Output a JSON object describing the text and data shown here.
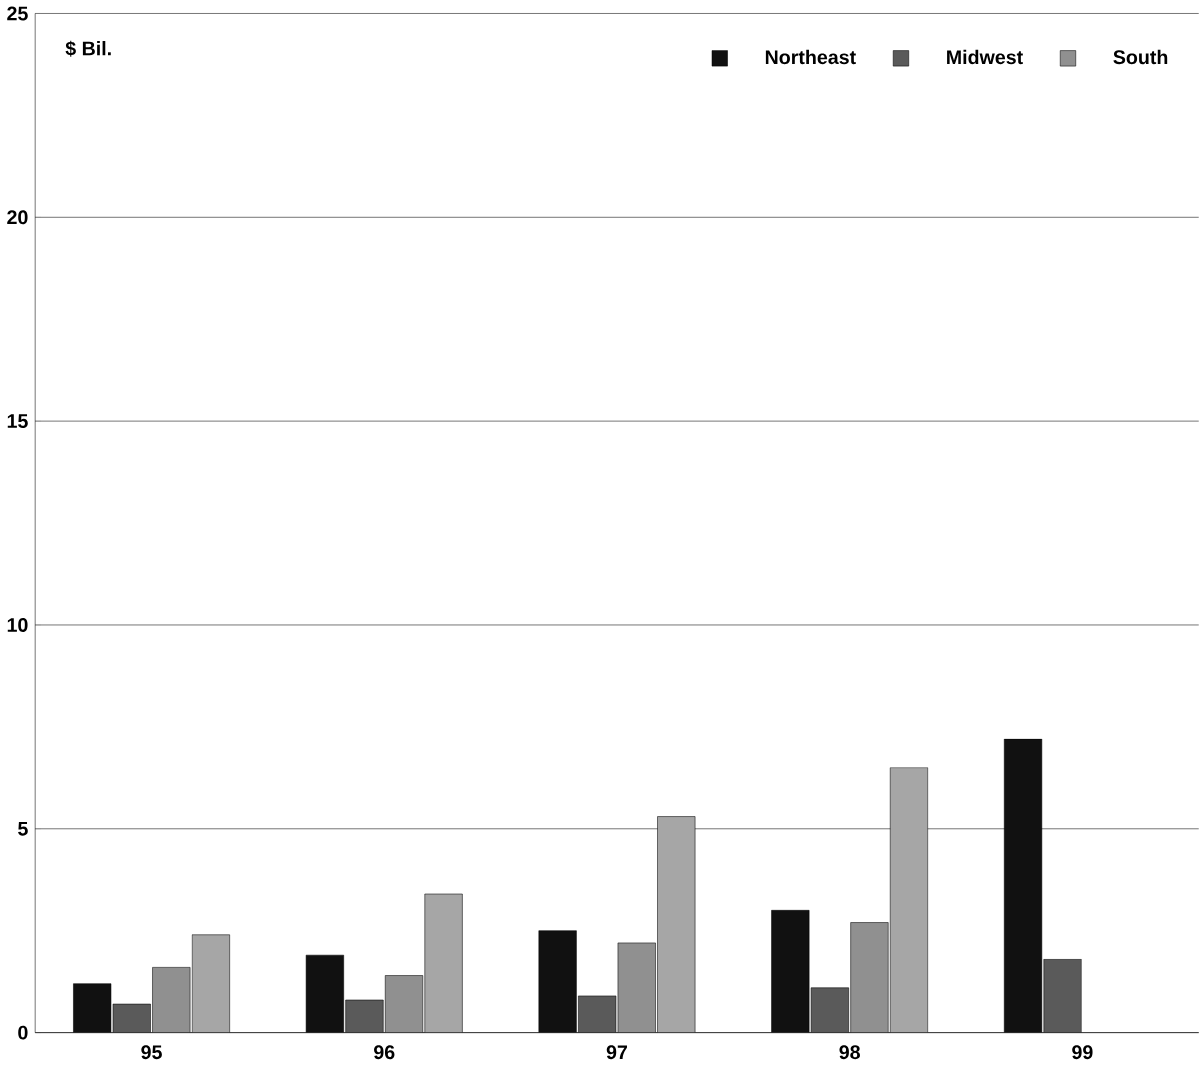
{
  "chart_data": {
    "type": "bar",
    "ylabel": "$ Bil.",
    "categories": [
      "95",
      "96",
      "97",
      "98",
      "99"
    ],
    "series": [
      {
        "name": "Northeast",
        "color": "#111111",
        "values": [
          1.2,
          1.9,
          2.5,
          3.0,
          7.2
        ]
      },
      {
        "name": "Midwest",
        "color": "#5a5a5a",
        "values": [
          0.7,
          0.8,
          0.9,
          1.1,
          1.8
        ]
      },
      {
        "name": "South",
        "color": "#909090",
        "values": [
          1.6,
          1.4,
          2.2,
          2.7,
          null
        ]
      },
      {
        "color": "#a6a6a6",
        "values": [
          2.4,
          3.4,
          5.3,
          6.5,
          null
        ]
      }
    ],
    "ylim": [
      0,
      25
    ],
    "yticks": [
      0,
      5,
      10,
      15,
      20,
      25
    ],
    "grid": "y",
    "legend": "top right"
  }
}
